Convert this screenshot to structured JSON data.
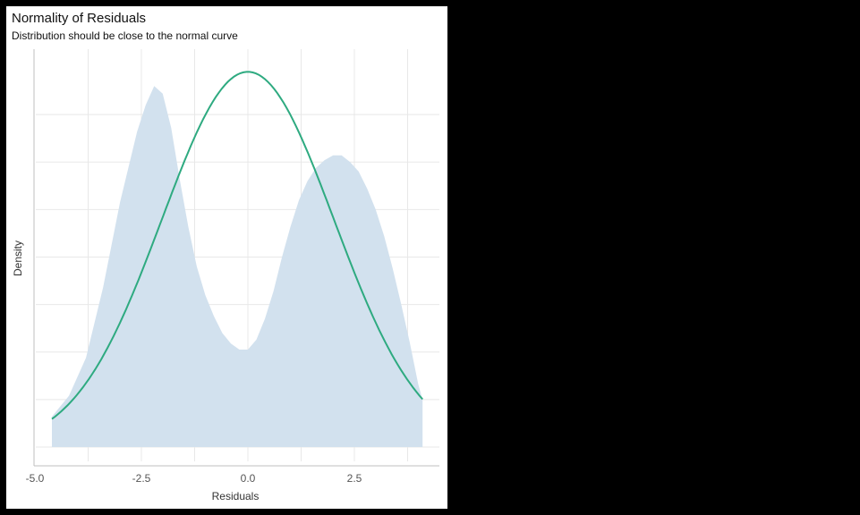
{
  "colors": {
    "background": "#000000",
    "panel": "#ffffff",
    "density_fill": "#d2e1ee",
    "normal_line": "#2eaa80",
    "grid": "#e8e8e8",
    "axis": "#bfbfbf"
  },
  "chart_data": {
    "type": "area",
    "title": "Normality of Residuals",
    "subtitle": "Distribution should be close to the normal curve",
    "xlabel": "Residuals",
    "ylabel": "Density",
    "xlim": [
      -5.0,
      4.6
    ],
    "ylim": [
      0,
      0.225
    ],
    "x_ticks": [
      -5.0,
      -2.5,
      0.0,
      2.5
    ],
    "x_tick_labels": [
      "-5.0",
      "-2.5",
      "0.0",
      "2.5"
    ],
    "y_ticks": [
      0,
      0.025,
      0.05,
      0.075,
      0.1,
      0.125,
      0.15,
      0.175
    ],
    "y_tick_labels": [],
    "grid": true,
    "legend": "none",
    "series": [
      {
        "kind": "density",
        "x": [
          -4.6,
          -4.2,
          -3.8,
          -3.4,
          -3.0,
          -2.6,
          -2.4,
          -2.2,
          -2.0,
          -1.8,
          -1.6,
          -1.4,
          -1.2,
          -1.0,
          -0.8,
          -0.6,
          -0.4,
          -0.2,
          0.0,
          0.2,
          0.4,
          0.6,
          0.8,
          1.0,
          1.2,
          1.4,
          1.6,
          1.8,
          2.0,
          2.2,
          2.4,
          2.6,
          2.8,
          3.0,
          3.2,
          3.4,
          3.6,
          3.8,
          4.0,
          4.1
        ],
        "y": [
          0.016,
          0.027,
          0.047,
          0.084,
          0.129,
          0.166,
          0.18,
          0.19,
          0.186,
          0.168,
          0.141,
          0.116,
          0.095,
          0.08,
          0.069,
          0.06,
          0.0545,
          0.0513,
          0.0513,
          0.0565,
          0.0675,
          0.082,
          0.1,
          0.116,
          0.13,
          0.14,
          0.147,
          0.151,
          0.1535,
          0.1535,
          0.15,
          0.145,
          0.136,
          0.125,
          0.111,
          0.094,
          0.075,
          0.055,
          0.033,
          0.025
        ]
      },
      {
        "kind": "normal",
        "mean": 0.0,
        "sd": 2.02,
        "x_range": [
          -4.6,
          4.1
        ]
      }
    ]
  }
}
